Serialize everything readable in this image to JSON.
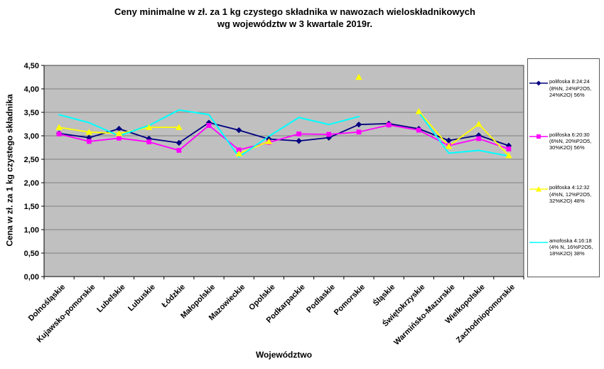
{
  "header": {
    "title_line1": "Ceny minimalne w zł. za 1 kg czystego składnika w nawozach wieloskładnikowych",
    "title_line2": "wg województw w 3 kwartale 2019r."
  },
  "chart_data": {
    "type": "line",
    "title": "Ceny minimalne w zł. za 1 kg czystego składnika w nawozach wieloskładnikowych wg województw w 3 kwartale 2019r.",
    "xlabel": "Województwo",
    "ylabel": "Cena w zł. za 1 kg czystego składnika",
    "ylim": [
      0,
      4.5
    ],
    "ytick_step": 0.5,
    "ytick_labels": [
      "0,00",
      "0,50",
      "1,00",
      "1,50",
      "2,00",
      "2,50",
      "3,00",
      "3,50",
      "4,00",
      "4,50"
    ],
    "grid": true,
    "plot_bg": "#c0c0c0",
    "grid_color": "#808080",
    "legend_position": "right",
    "categories": [
      "Dolnośląskie",
      "Kujawsko-pomorskie",
      "Lubelskie",
      "Lubuskie",
      "Łódzkie",
      "Małopolskie",
      "Mazowieckie",
      "Opolskie",
      "Podkarpackie",
      "Podlaskie",
      "Pomorskie",
      "Śląskie",
      "Świętokrzyskie",
      "Warmińsko-Mazurskie",
      "Wielkopolskie",
      "Zachodniopomorskie"
    ],
    "series": [
      {
        "name": "polifoska 8:24:24 (8%N, 24%P2O5, 24%K2O) 56%",
        "color": "#000080",
        "marker": "diamond",
        "values": [
          3.05,
          2.96,
          3.15,
          2.94,
          2.85,
          3.28,
          3.12,
          2.93,
          2.89,
          2.96,
          3.24,
          3.26,
          3.15,
          2.9,
          3.01,
          2.79
        ]
      },
      {
        "name": "polifoska 6:20:30 (6%N, 20%P2O5, 30%K2O) 56%",
        "color": "#ff00ff",
        "marker": "square",
        "values": [
          3.04,
          2.88,
          2.95,
          2.87,
          2.69,
          3.22,
          2.7,
          2.86,
          3.04,
          3.03,
          3.08,
          3.23,
          3.12,
          2.79,
          2.94,
          2.72
        ]
      },
      {
        "name": "polifoska 4:12:32 (4%N, 12%P2O5, 32%K2O) 48%",
        "color": "#ffff00",
        "marker": "triangle",
        "values": [
          3.18,
          3.08,
          3.05,
          3.18,
          3.18,
          null,
          2.62,
          2.88,
          null,
          null,
          4.25,
          null,
          3.52,
          2.78,
          3.25,
          2.58
        ]
      },
      {
        "name": "amofoska 4:16:18 (4% N, 16%P2O5, 18%K2O) 38%",
        "color": "#00ffff",
        "marker": "none",
        "values": [
          3.45,
          3.28,
          3.0,
          3.22,
          3.55,
          3.45,
          2.55,
          2.99,
          3.39,
          3.24,
          3.41,
          null,
          3.5,
          2.63,
          2.69,
          2.57
        ]
      }
    ]
  }
}
